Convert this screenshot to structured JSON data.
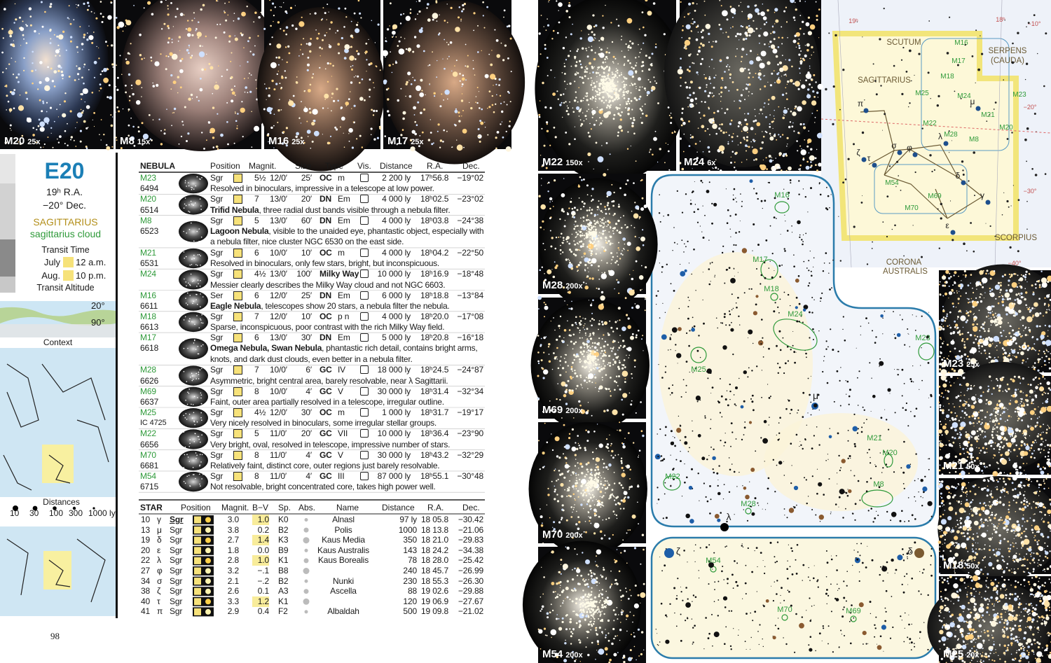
{
  "top_photos": [
    {
      "name": "M20",
      "zoom": "25x"
    },
    {
      "name": "M8",
      "zoom": "15x"
    },
    {
      "name": "M16",
      "zoom": "25x"
    },
    {
      "name": "M17",
      "zoom": "25x"
    }
  ],
  "side_photos": [
    {
      "name": "M22",
      "zoom": "150x"
    },
    {
      "name": "M24",
      "zoom": "6x"
    },
    {
      "name": "M28",
      "zoom": "200x"
    },
    {
      "name": "M69",
      "zoom": "200x"
    },
    {
      "name": "M70",
      "zoom": "200x"
    },
    {
      "name": "M54",
      "zoom": "200x"
    },
    {
      "name": "M23",
      "zoom": "25x"
    },
    {
      "name": "M21",
      "zoom": "50x"
    },
    {
      "name": "M18",
      "zoom": "50x"
    },
    {
      "name": "M25",
      "zoom": "20x"
    }
  ],
  "sidebar": {
    "code": "E20",
    "ra": "19ʰ R.A.",
    "dec": "−20° Dec.",
    "constellation": "SAGITTARIUS",
    "object": "sagittarius cloud",
    "transit_time": "Transit Time",
    "months": [
      {
        "month": "July",
        "time": "12 a.m."
      },
      {
        "month": "Aug.",
        "time": "10 p.m."
      }
    ],
    "transit_altitude": "Transit Altitude",
    "altitudes": [
      "20°",
      "90°"
    ],
    "context": "Context",
    "distances_title": "Distances",
    "distances": [
      "10",
      "30",
      "100",
      "300",
      "1000 ly"
    ]
  },
  "nebula_table": {
    "headers": [
      "NEBULA",
      "Position",
      "Magnit.",
      "Size",
      "Type",
      "Vis.",
      "Distance",
      "R.A.",
      "Dec."
    ],
    "rows": [
      {
        "id": "M23",
        "ngc": "6494",
        "con": "Sgr",
        "mag": "5½",
        "surf": "12/0′",
        "size": "25′",
        "type": "OC",
        "sub": "m",
        "dist": "2 200 ly",
        "ra": "17ʰ56.8",
        "dec": "−19°02",
        "desc": "Resolved in binoculars, impressive in a telescope at low power."
      },
      {
        "id": "M20",
        "ngc": "6514",
        "con": "Sgr",
        "mag": "7",
        "surf": "13/0′",
        "size": "20′",
        "type": "DN",
        "sub": "Em",
        "dist": "4 000 ly",
        "ra": "18ʰ02.5",
        "dec": "−23°02",
        "bold": "Trifid Nebula",
        "desc": ", three radial dust bands visible through a nebula filter."
      },
      {
        "id": "M8",
        "ngc": "6523",
        "con": "Sgr",
        "mag": "5",
        "surf": "13/0′",
        "size": "60′",
        "type": "DN",
        "sub": "Em",
        "dist": "4 000 ly",
        "ra": "18ʰ03.8",
        "dec": "−24°38",
        "bold": "Lagoon Nebula",
        "desc": ", visible to the unaided eye, phantastic object, especially with a nebula filter, nice cluster NGC 6530 on the east side."
      },
      {
        "id": "M21",
        "ngc": "6531",
        "con": "Sgr",
        "mag": "6",
        "surf": "10/0′",
        "size": "10′",
        "type": "OC",
        "sub": "m",
        "dist": "4 000 ly",
        "ra": "18ʰ04.2",
        "dec": "−22°50",
        "desc": "Resolved in binoculars, only few stars, bright, but inconspicuous."
      },
      {
        "id": "M24",
        "con": "Sgr",
        "mag": "4½",
        "surf": "13/0′",
        "size": "100′",
        "type": "Milky Way",
        "dist": "10 000 ly",
        "ra": "18ʰ16.9",
        "dec": "−18°48",
        "desc": "Messier clearly describes the Milky Way cloud and not NGC 6603."
      },
      {
        "id": "M16",
        "ngc": "6611",
        "con": "Ser",
        "mag": "6",
        "surf": "12/0′",
        "size": "25′",
        "type": "DN",
        "sub": "Em",
        "dist": "6 000 ly",
        "ra": "18ʰ18.8",
        "dec": "−13°84",
        "bold": "Eagle Nebula",
        "desc": ", telescopes show 20 stars, a nebula filter the nebula."
      },
      {
        "id": "M18",
        "ngc": "6613",
        "con": "Sgr",
        "mag": "7",
        "surf": "12/0′",
        "size": "10′",
        "type": "OC",
        "sub": "p n",
        "dist": "4 000 ly",
        "ra": "18ʰ20.0",
        "dec": "−17°08",
        "desc": "Sparse, inconspicuous, poor contrast with the rich Milky Way field."
      },
      {
        "id": "M17",
        "ngc": "6618",
        "con": "Sgr",
        "mag": "6",
        "surf": "13/0′",
        "size": "30′",
        "type": "DN",
        "sub": "Em",
        "dist": "5 000 ly",
        "ra": "18ʰ20.8",
        "dec": "−16°18",
        "bold": "Omega Nebula, Swan Nebula",
        "desc": ", phantastic rich detail, contains bright arms, knots, and dark dust clouds, even better in a nebula filter."
      },
      {
        "id": "M28",
        "ngc": "6626",
        "con": "Sgr",
        "mag": "7",
        "surf": "10/0′",
        "size": "6′",
        "type": "GC",
        "sub": "IV",
        "dist": "18 000 ly",
        "ra": "18ʰ24.5",
        "dec": "−24°87",
        "desc": "Asymmetric, bright central area, barely resolvable, near λ Sagittarii."
      },
      {
        "id": "M69",
        "ngc": "6637",
        "con": "Sgr",
        "mag": "8",
        "surf": "10/0′",
        "size": "4′",
        "type": "GC",
        "sub": "V",
        "dist": "30 000 ly",
        "ra": "18ʰ31.4",
        "dec": "−32°34",
        "desc": "Faint, outer area partially resolved in a telescope, irregular outline."
      },
      {
        "id": "M25",
        "ngc": "IC 4725",
        "con": "Sgr",
        "mag": "4½",
        "surf": "12/0′",
        "size": "30′",
        "type": "OC",
        "sub": "m",
        "dist": "1 000 ly",
        "ra": "18ʰ31.7",
        "dec": "−19°17",
        "desc": "Very nicely resolved in binoculars, some irregular stellar groups."
      },
      {
        "id": "M22",
        "ngc": "6656",
        "con": "Sgr",
        "mag": "5",
        "surf": "11/0′",
        "size": "20′",
        "type": "GC",
        "sub": "VII",
        "dist": "10 000 ly",
        "ra": "18ʰ36.4",
        "dec": "−23°90",
        "desc": "Very bright, oval, resolved in telescope, impressive number of stars."
      },
      {
        "id": "M70",
        "ngc": "6681",
        "con": "Sgr",
        "mag": "8",
        "surf": "11/0′",
        "size": "4′",
        "type": "GC",
        "sub": "V",
        "dist": "30 000 ly",
        "ra": "18ʰ43.2",
        "dec": "−32°29",
        "desc": "Relatively faint, distinct core, outer regions just barely resolvable."
      },
      {
        "id": "M54",
        "ngc": "6715",
        "con": "Sgr",
        "mag": "8",
        "surf": "11/0′",
        "size": "4′",
        "type": "GC",
        "sub": "III",
        "dist": "87 000 ly",
        "ra": "18ʰ55.1",
        "dec": "−30°48",
        "desc": "Not resolvable, bright concentrated core, takes high power well."
      }
    ]
  },
  "star_table": {
    "headers": [
      "STAR",
      "Position",
      "Magnit.",
      "B−V",
      "Sp.",
      "Abs.",
      "Name",
      "Distance",
      "R.A.",
      "Dec."
    ],
    "rows": [
      {
        "num": "10",
        "greek": "γ",
        "con": "Sgr",
        "mag": "3.0",
        "bv": "1.0",
        "sp": "K0",
        "name": "Alnasl",
        "dist": "97 ly",
        "ra": "18 05.8",
        "dec": "−30.42"
      },
      {
        "num": "13",
        "greek": "μ",
        "con": "Sgr",
        "mag": "3.8",
        "bv": "0.2",
        "sp": "B2",
        "name": "Polis",
        "dist": "1000",
        "ra": "18 13.8",
        "dec": "−21.06"
      },
      {
        "num": "19",
        "greek": "δ",
        "con": "Sgr",
        "mag": "2.7",
        "bv": "1.4",
        "sp": "K3",
        "name": "Kaus Media",
        "dist": "350",
        "ra": "18 21.0",
        "dec": "−29.83"
      },
      {
        "num": "20",
        "greek": "ε",
        "con": "Sgr",
        "mag": "1.8",
        "bv": "0.0",
        "sp": "B9",
        "name": "Kaus Australis",
        "dist": "143",
        "ra": "18 24.2",
        "dec": "−34.38"
      },
      {
        "num": "22",
        "greek": "λ",
        "con": "Sgr",
        "mag": "2.8",
        "bv": "1.0",
        "sp": "K1",
        "name": "Kaus Borealis",
        "dist": "78",
        "ra": "18 28.0",
        "dec": "−25.42"
      },
      {
        "num": "27",
        "greek": "φ",
        "con": "Sgr",
        "mag": "3.2",
        "bv": "−.1",
        "sp": "B8",
        "dist": "240",
        "ra": "18 45.7",
        "dec": "−26.99"
      },
      {
        "num": "34",
        "greek": "σ",
        "con": "Sgr",
        "mag": "2.1",
        "bv": "−.2",
        "sp": "B2",
        "name": "Nunki",
        "dist": "230",
        "ra": "18 55.3",
        "dec": "−26.30"
      },
      {
        "num": "38",
        "greek": "ζ",
        "con": "Sgr",
        "mag": "2.6",
        "bv": "0.1",
        "sp": "A3",
        "name": "Ascella",
        "dist": "88",
        "ra": "19 02.6",
        "dec": "−29.88"
      },
      {
        "num": "40",
        "greek": "τ",
        "con": "Sgr",
        "mag": "3.3",
        "bv": "1.2",
        "sp": "K1",
        "dist": "120",
        "ra": "19 06.9",
        "dec": "−27.67"
      },
      {
        "num": "41",
        "greek": "π",
        "con": "Sgr",
        "mag": "2.9",
        "bv": "0.4",
        "sp": "F2",
        "name": "Albaldah",
        "dist": "500",
        "ra": "19 09.8",
        "dec": "−21.02"
      }
    ]
  },
  "overview_map": {
    "labels": [
      "SCUTUM",
      "SERPENS",
      "(CAUDA)",
      "SAGITTARIUS",
      "CORONA",
      "AUSTRALIS",
      "SCORPIUS",
      "19ʰ",
      "18ʰ",
      "−10°",
      "−20°",
      "−30°",
      "−40°",
      "M16",
      "M17",
      "M18",
      "M24",
      "M23",
      "M21",
      "M20",
      "M8",
      "M22",
      "M28",
      "M25",
      "M54",
      "M69",
      "M70",
      "π",
      "ζ",
      "σ",
      "φ",
      "λ",
      "τ",
      "δ",
      "γ",
      "ε",
      "μ"
    ]
  },
  "detail_map": {
    "labels": [
      "M16",
      "M17",
      "M18",
      "M24",
      "M23",
      "M25",
      "M21",
      "M20",
      "M8",
      "M22",
      "M28",
      "μ",
      "λ",
      "ζ",
      "δ",
      "M54",
      "M70",
      "M69"
    ]
  },
  "page_number": "98"
}
